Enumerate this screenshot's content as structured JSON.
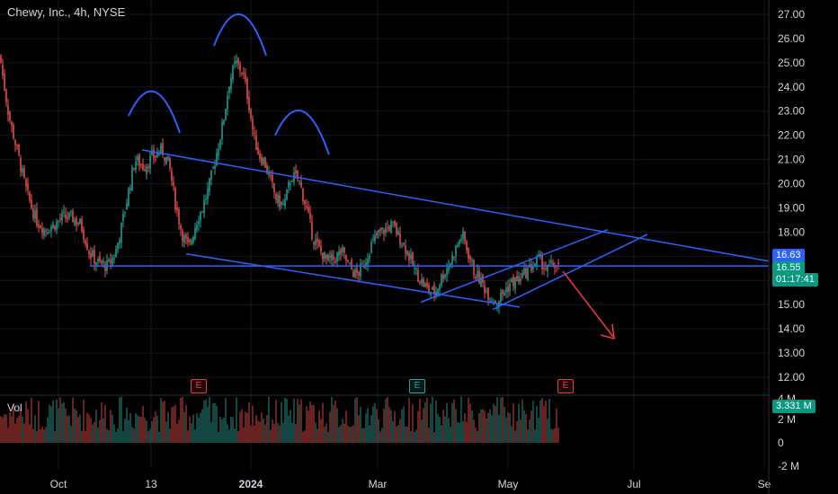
{
  "header": {
    "title": "Chewy, Inc., 4h, NYSE"
  },
  "volume": {
    "label": "Vol",
    "last": "3.331 M"
  },
  "badges": {
    "prev_close": "16.63",
    "last_price": "16.55",
    "countdown": "01:17:41"
  },
  "earnings_marker": "E",
  "colors": {
    "up": "#26a69a",
    "down": "#ef5350",
    "drawing": "#2962ff",
    "arrow": "#f23645",
    "bg": "#000000"
  },
  "chart_data": {
    "type": "candlestick",
    "price_axis": {
      "range": [
        11.5,
        27.5
      ],
      "ticks": [
        "27.00",
        "26.00",
        "25.00",
        "24.00",
        "23.00",
        "22.00",
        "21.00",
        "20.00",
        "19.00",
        "18.00",
        "17.00",
        "16.00",
        "15.00",
        "14.00",
        "13.00",
        "12.00"
      ]
    },
    "volume_axis": {
      "ticks": [
        "4 M",
        "2 M",
        "0",
        "-2 M"
      ]
    },
    "time_axis": {
      "labels": [
        "Oct",
        "13",
        "2024",
        "Mar",
        "May",
        "Jul",
        "Se"
      ]
    },
    "price_path": [
      [
        0,
        25.3
      ],
      [
        4,
        24.2
      ],
      [
        10,
        22.8
      ],
      [
        20,
        21.2
      ],
      [
        30,
        19.6
      ],
      [
        40,
        18.5
      ],
      [
        50,
        18.1
      ],
      [
        60,
        18.3
      ],
      [
        70,
        18.6
      ],
      [
        80,
        18.6
      ],
      [
        90,
        18.3
      ],
      [
        100,
        17.1
      ],
      [
        110,
        16.7
      ],
      [
        120,
        16.6
      ],
      [
        128,
        17.1
      ],
      [
        135,
        18.2
      ],
      [
        142,
        19.5
      ],
      [
        150,
        21.0
      ],
      [
        160,
        20.7
      ],
      [
        170,
        21.1
      ],
      [
        180,
        21.4
      ],
      [
        188,
        20.8
      ],
      [
        195,
        19.2
      ],
      [
        202,
        18.0
      ],
      [
        210,
        17.3
      ],
      [
        218,
        18.4
      ],
      [
        225,
        19.0
      ],
      [
        232,
        19.8
      ],
      [
        240,
        21.1
      ],
      [
        248,
        22.5
      ],
      [
        255,
        24.2
      ],
      [
        262,
        25.0
      ],
      [
        270,
        24.6
      ],
      [
        276,
        23.5
      ],
      [
        282,
        22.0
      ],
      [
        288,
        21.2
      ],
      [
        294,
        20.9
      ],
      [
        300,
        20.2
      ],
      [
        308,
        19.3
      ],
      [
        316,
        19.1
      ],
      [
        324,
        20.3
      ],
      [
        332,
        20.2
      ],
      [
        340,
        19.1
      ],
      [
        348,
        17.8
      ],
      [
        356,
        17.2
      ],
      [
        364,
        16.8
      ],
      [
        372,
        16.9
      ],
      [
        380,
        17.2
      ],
      [
        388,
        16.6
      ],
      [
        396,
        16.2
      ],
      [
        404,
        16.6
      ],
      [
        412,
        17.4
      ],
      [
        420,
        17.9
      ],
      [
        428,
        18.1
      ],
      [
        436,
        18.3
      ],
      [
        444,
        17.8
      ],
      [
        452,
        17.3
      ],
      [
        460,
        16.5
      ],
      [
        468,
        16.0
      ],
      [
        476,
        15.6
      ],
      [
        484,
        15.5
      ],
      [
        492,
        16.2
      ],
      [
        500,
        16.7
      ],
      [
        508,
        17.4
      ],
      [
        514,
        17.9
      ],
      [
        520,
        17.2
      ],
      [
        528,
        16.3
      ],
      [
        536,
        15.9
      ],
      [
        544,
        15.4
      ],
      [
        552,
        15.1
      ],
      [
        560,
        15.5
      ],
      [
        568,
        15.9
      ],
      [
        576,
        16.0
      ],
      [
        584,
        16.3
      ],
      [
        592,
        16.6
      ],
      [
        600,
        16.9
      ],
      [
        608,
        16.4
      ],
      [
        616,
        16.7
      ],
      [
        622,
        16.5
      ]
    ],
    "drawings": [
      {
        "kind": "line",
        "name": "upper-trendline",
        "from": [
          158,
          21.4
        ],
        "to": [
          855,
          16.8
        ]
      },
      {
        "kind": "line",
        "name": "support-line",
        "from": [
          100,
          16.6
        ],
        "to": [
          855,
          16.6
        ]
      },
      {
        "kind": "line",
        "name": "lower-trendline",
        "from": [
          207,
          17.1
        ],
        "to": [
          578,
          14.9
        ]
      },
      {
        "kind": "line",
        "name": "channel-upper",
        "from": [
          468,
          15.1
        ],
        "to": [
          676,
          18.1
        ]
      },
      {
        "kind": "line",
        "name": "channel-lower",
        "from": [
          548,
          14.8
        ],
        "to": [
          720,
          17.9
        ]
      },
      {
        "kind": "arc",
        "name": "left-shoulder-arc",
        "from": [
          143,
          22.8
        ],
        "peak": [
          172,
          23.8
        ],
        "to": [
          200,
          22.1
        ]
      },
      {
        "kind": "arc",
        "name": "head-arc",
        "from": [
          238,
          25.7
        ],
        "peak": [
          267,
          27.0
        ],
        "to": [
          296,
          25.3
        ]
      },
      {
        "kind": "arc",
        "name": "right-shoulder-arc",
        "from": [
          306,
          22.0
        ],
        "peak": [
          336,
          23.0
        ],
        "to": [
          366,
          21.2
        ]
      }
    ]
  }
}
